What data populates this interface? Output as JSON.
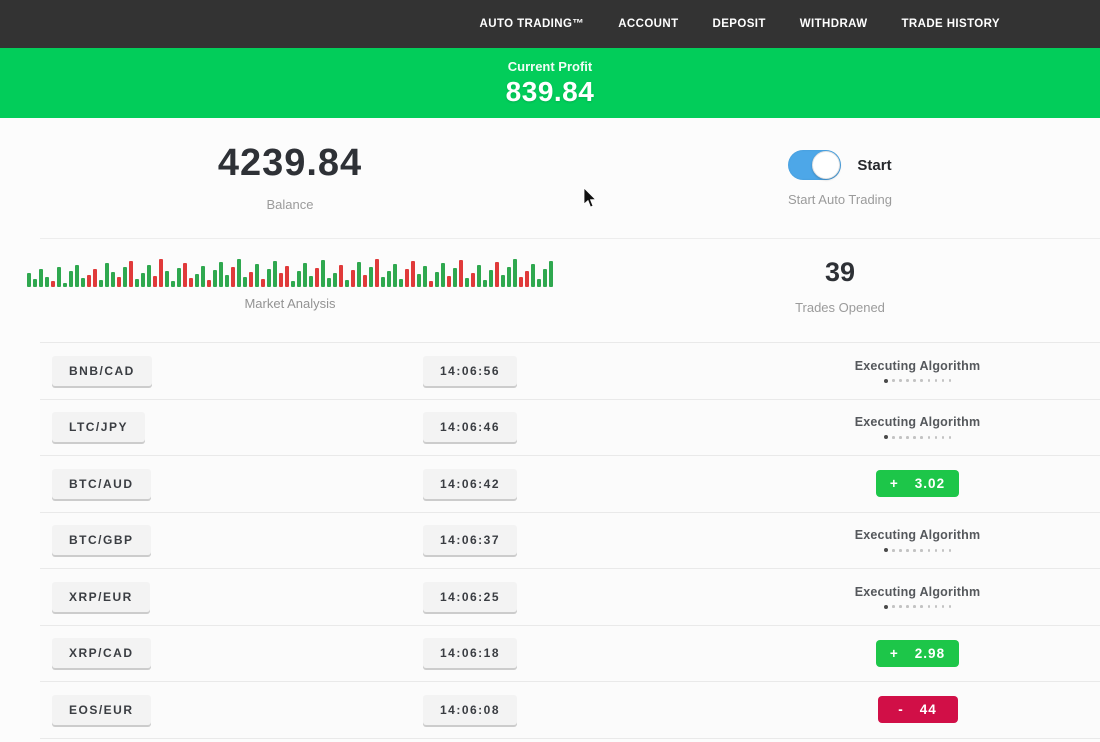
{
  "navbar": {
    "items": [
      "AUTO TRADING™",
      "ACCOUNT",
      "DEPOSIT",
      "WITHDRAW",
      "TRADE HISTORY"
    ]
  },
  "profit_banner": {
    "label": "Current Profit",
    "value": "839.84",
    "background_color": "#02cd5a"
  },
  "account": {
    "balance_value": "4239.84",
    "balance_label": "Balance",
    "toggle_label": "Start",
    "toggle_sublabel": "Start Auto Trading",
    "toggle_state": "on",
    "toggle_color": "#4da7e8"
  },
  "market": {
    "label": "Market Analysis",
    "trades_opened": "39",
    "trades_opened_label": "Trades Opened",
    "colors": {
      "up": "#2fa84f",
      "down": "#e03a3a"
    },
    "bars": [
      [
        14,
        "g"
      ],
      [
        8,
        "g"
      ],
      [
        18,
        "g"
      ],
      [
        10,
        "g"
      ],
      [
        6,
        "r"
      ],
      [
        20,
        "g"
      ],
      [
        4,
        "g"
      ],
      [
        16,
        "g"
      ],
      [
        22,
        "g"
      ],
      [
        9,
        "g"
      ],
      [
        12,
        "r"
      ],
      [
        18,
        "r"
      ],
      [
        7,
        "g"
      ],
      [
        24,
        "g"
      ],
      [
        15,
        "g"
      ],
      [
        10,
        "r"
      ],
      [
        20,
        "g"
      ],
      [
        26,
        "r"
      ],
      [
        8,
        "g"
      ],
      [
        14,
        "g"
      ],
      [
        22,
        "g"
      ],
      [
        11,
        "r"
      ],
      [
        28,
        "r"
      ],
      [
        16,
        "g"
      ],
      [
        6,
        "g"
      ],
      [
        19,
        "g"
      ],
      [
        24,
        "r"
      ],
      [
        9,
        "r"
      ],
      [
        13,
        "g"
      ],
      [
        21,
        "g"
      ],
      [
        7,
        "r"
      ],
      [
        17,
        "g"
      ],
      [
        25,
        "g"
      ],
      [
        12,
        "g"
      ],
      [
        20,
        "r"
      ],
      [
        28,
        "g"
      ],
      [
        10,
        "g"
      ],
      [
        15,
        "r"
      ],
      [
        23,
        "g"
      ],
      [
        8,
        "r"
      ],
      [
        18,
        "g"
      ],
      [
        26,
        "g"
      ],
      [
        14,
        "r"
      ],
      [
        21,
        "r"
      ],
      [
        6,
        "g"
      ],
      [
        16,
        "g"
      ],
      [
        24,
        "g"
      ],
      [
        11,
        "g"
      ],
      [
        19,
        "r"
      ],
      [
        27,
        "g"
      ],
      [
        9,
        "g"
      ],
      [
        14,
        "g"
      ],
      [
        22,
        "r"
      ],
      [
        7,
        "g"
      ],
      [
        17,
        "r"
      ],
      [
        25,
        "g"
      ],
      [
        12,
        "r"
      ],
      [
        20,
        "g"
      ],
      [
        28,
        "r"
      ],
      [
        10,
        "g"
      ],
      [
        16,
        "g"
      ],
      [
        23,
        "g"
      ],
      [
        8,
        "g"
      ],
      [
        18,
        "r"
      ],
      [
        26,
        "r"
      ],
      [
        13,
        "g"
      ],
      [
        21,
        "g"
      ],
      [
        6,
        "r"
      ],
      [
        15,
        "g"
      ],
      [
        24,
        "g"
      ],
      [
        11,
        "r"
      ],
      [
        19,
        "g"
      ],
      [
        27,
        "r"
      ],
      [
        9,
        "g"
      ],
      [
        14,
        "r"
      ],
      [
        22,
        "g"
      ],
      [
        7,
        "g"
      ],
      [
        17,
        "g"
      ],
      [
        25,
        "r"
      ],
      [
        12,
        "g"
      ],
      [
        20,
        "g"
      ],
      [
        28,
        "g"
      ],
      [
        10,
        "r"
      ],
      [
        16,
        "r"
      ],
      [
        23,
        "g"
      ],
      [
        8,
        "g"
      ],
      [
        18,
        "g"
      ],
      [
        26,
        "g"
      ]
    ]
  },
  "trades": {
    "executing_label": "Executing Algorithm",
    "status_colors": {
      "profit": "#1dc649",
      "loss": "#d10f47"
    },
    "rows": [
      {
        "pair": "BNB/CAD",
        "time": "14:06:56",
        "status": {
          "type": "executing"
        }
      },
      {
        "pair": "LTC/JPY",
        "time": "14:06:46",
        "status": {
          "type": "executing"
        }
      },
      {
        "pair": "BTC/AUD",
        "time": "14:06:42",
        "status": {
          "type": "profit",
          "sign": "+",
          "value": "3.02"
        }
      },
      {
        "pair": "BTC/GBP",
        "time": "14:06:37",
        "status": {
          "type": "executing"
        }
      },
      {
        "pair": "XRP/EUR",
        "time": "14:06:25",
        "status": {
          "type": "executing"
        }
      },
      {
        "pair": "XRP/CAD",
        "time": "14:06:18",
        "status": {
          "type": "profit",
          "sign": "+",
          "value": "2.98"
        }
      },
      {
        "pair": "EOS/EUR",
        "time": "14:06:08",
        "status": {
          "type": "loss",
          "sign": "-",
          "value": "44"
        }
      }
    ]
  }
}
